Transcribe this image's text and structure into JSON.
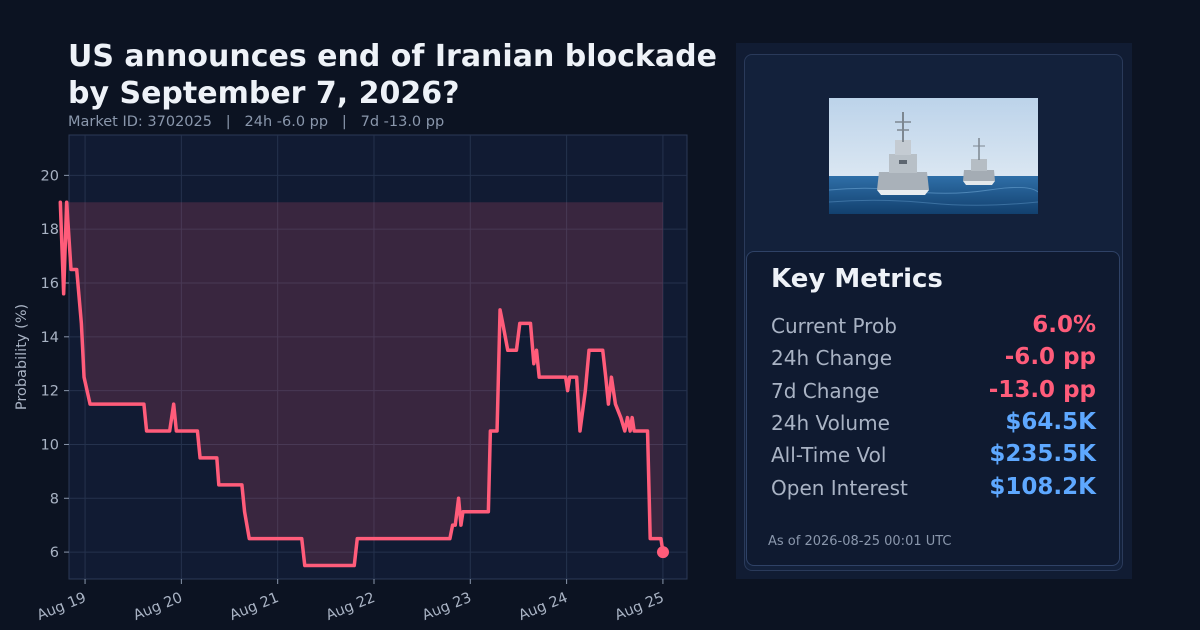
{
  "header": {
    "title_line1": "US announces end of Iranian blockade",
    "title_line2": "by September 7, 2026?",
    "subtitle": "Market ID: 3702025   |   24h -6.0 pp   |   7d -13.0 pp"
  },
  "colors": {
    "line": "#ff5c7a",
    "positive_value": "#5ea8ff",
    "negative_value": "#ff5c7a"
  },
  "chart_data": {
    "type": "line",
    "title": "",
    "xlabel": "",
    "ylabel": "Probability (%)",
    "xlim": [
      "2026-08-18 20:00",
      "2026-08-25 06:00"
    ],
    "ylim": [
      5,
      21.5
    ],
    "yticks": [
      6,
      8,
      10,
      12,
      14,
      16,
      18,
      20
    ],
    "xticks": [
      "2026-08-19",
      "2026-08-20",
      "2026-08-21",
      "2026-08-22",
      "2026-08-23",
      "2026-08-24",
      "2026-08-25"
    ],
    "xtick_labels": [
      "Aug 19",
      "Aug 20",
      "Aug 21",
      "Aug 22",
      "Aug 23",
      "Aug 24",
      "Aug 25"
    ],
    "grid": true,
    "fill_below": 19,
    "series": [
      {
        "name": "",
        "points": [
          [
            "2026-08-18 17:50",
            19.0
          ],
          [
            "2026-08-18 18:40",
            15.6
          ],
          [
            "2026-08-18 19:25",
            19.0
          ],
          [
            "2026-08-18 20:30",
            16.5
          ],
          [
            "2026-08-18 21:55",
            16.5
          ],
          [
            "2026-08-18 23:05",
            14.5
          ],
          [
            "2026-08-18 23:45",
            12.5
          ],
          [
            "2026-08-19 01:15",
            11.5
          ],
          [
            "2026-08-19 14:40",
            11.5
          ],
          [
            "2026-08-19 15:20",
            10.5
          ],
          [
            "2026-08-19 21:05",
            10.5
          ],
          [
            "2026-08-19 22:05",
            11.5
          ],
          [
            "2026-08-19 22:45",
            10.5
          ],
          [
            "2026-08-20 04:00",
            10.5
          ],
          [
            "2026-08-20 04:40",
            9.5
          ],
          [
            "2026-08-20 08:50",
            9.5
          ],
          [
            "2026-08-20 09:20",
            8.5
          ],
          [
            "2026-08-20 15:05",
            8.5
          ],
          [
            "2026-08-20 15:45",
            7.5
          ],
          [
            "2026-08-20 16:55",
            6.5
          ],
          [
            "2026-08-21 06:00",
            6.5
          ],
          [
            "2026-08-21 06:45",
            5.5
          ],
          [
            "2026-08-21 19:05",
            5.5
          ],
          [
            "2026-08-21 19:50",
            6.5
          ],
          [
            "2026-08-22 18:55",
            6.5
          ],
          [
            "2026-08-22 19:35",
            7.0
          ],
          [
            "2026-08-22 20:15",
            7.0
          ],
          [
            "2026-08-22 21:05",
            8.0
          ],
          [
            "2026-08-22 21:40",
            7.0
          ],
          [
            "2026-08-22 22:10",
            7.5
          ],
          [
            "2026-08-23 04:30",
            7.5
          ],
          [
            "2026-08-23 05:00",
            10.5
          ],
          [
            "2026-08-23 06:40",
            10.5
          ],
          [
            "2026-08-23 07:25",
            15.0
          ],
          [
            "2026-08-23 08:05",
            14.5
          ],
          [
            "2026-08-23 09:20",
            13.5
          ],
          [
            "2026-08-23 11:30",
            13.5
          ],
          [
            "2026-08-23 12:20",
            14.5
          ],
          [
            "2026-08-23 15:00",
            14.5
          ],
          [
            "2026-08-23 15:50",
            13.0
          ],
          [
            "2026-08-23 16:30",
            13.5
          ],
          [
            "2026-08-23 17:10",
            12.5
          ],
          [
            "2026-08-23 23:45",
            12.5
          ],
          [
            "2026-08-24 00:15",
            12.0
          ],
          [
            "2026-08-24 00:45",
            12.5
          ],
          [
            "2026-08-24 02:30",
            12.5
          ],
          [
            "2026-08-24 03:20",
            10.5
          ],
          [
            "2026-08-24 04:40",
            12.0
          ],
          [
            "2026-08-24 05:35",
            13.5
          ],
          [
            "2026-08-24 09:00",
            13.5
          ],
          [
            "2026-08-24 09:45",
            12.5
          ],
          [
            "2026-08-24 10:25",
            11.5
          ],
          [
            "2026-08-24 11:10",
            12.5
          ],
          [
            "2026-08-24 12:10",
            11.5
          ],
          [
            "2026-08-24 13:30",
            11.0
          ],
          [
            "2026-08-24 14:30",
            10.5
          ],
          [
            "2026-08-24 15:10",
            11.0
          ],
          [
            "2026-08-24 15:50",
            10.5
          ],
          [
            "2026-08-24 16:20",
            11.0
          ],
          [
            "2026-08-24 16:50",
            10.5
          ],
          [
            "2026-08-24 20:10",
            10.5
          ],
          [
            "2026-08-24 20:50",
            6.5
          ],
          [
            "2026-08-24 23:30",
            6.5
          ],
          [
            "2026-08-25 00:01",
            6.0
          ]
        ]
      }
    ]
  },
  "photo": {
    "alt": ""
  },
  "metrics": {
    "title": "Key Metrics",
    "rows": [
      {
        "label": "Current Prob",
        "value": "6.0%",
        "tone": "negative"
      },
      {
        "label": "24h Change",
        "value": "-6.0 pp",
        "tone": "negative"
      },
      {
        "label": "7d Change",
        "value": "-13.0 pp",
        "tone": "negative"
      },
      {
        "label": "24h Volume",
        "value": "$64.5K",
        "tone": "positive"
      },
      {
        "label": "All-Time Vol",
        "value": "$235.5K",
        "tone": "positive"
      },
      {
        "label": "Open Interest",
        "value": "$108.2K",
        "tone": "positive"
      }
    ],
    "as_of": "As of 2026-08-25 00:01 UTC"
  }
}
